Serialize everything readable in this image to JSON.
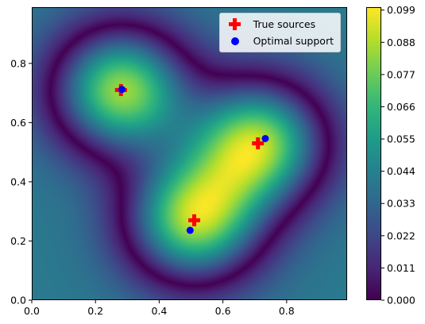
{
  "chart_data": {
    "type": "heatmap",
    "xlim": [
      0,
      0.99
    ],
    "ylim": [
      0,
      0.99
    ],
    "x_ticks": [
      "0.0",
      "0.2",
      "0.4",
      "0.6",
      "0.8"
    ],
    "y_ticks": [
      "0.0",
      "0.2",
      "0.4",
      "0.6",
      "0.8"
    ],
    "colormap": "viridis",
    "colorbar": {
      "min": 0.0,
      "max": 0.1,
      "ticks": [
        "0.000",
        "0.011",
        "0.022",
        "0.033",
        "0.044",
        "0.055",
        "0.066",
        "0.077",
        "0.088",
        "0.099"
      ]
    },
    "legend_position": "upper right",
    "series": [
      {
        "name": "True sources",
        "marker": "plus",
        "color": "#ff0000",
        "points": [
          [
            0.28,
            0.71
          ],
          [
            0.71,
            0.53
          ],
          [
            0.51,
            0.27
          ]
        ]
      },
      {
        "name": "Optimal support",
        "marker": "circle",
        "color": "#0000ff",
        "points": [
          [
            0.283,
            0.712
          ],
          [
            0.733,
            0.546
          ],
          [
            0.497,
            0.236
          ]
        ]
      }
    ]
  }
}
